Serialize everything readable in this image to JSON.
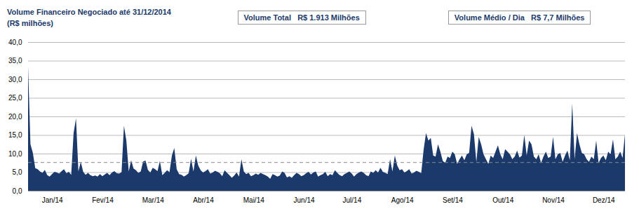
{
  "chart_data": {
    "type": "area",
    "title": "Volume Financeiro Negociado até 31/12/2014",
    "subtitle": "(R$ milhões)",
    "annotations": [
      "Volume Total   R$ 1.913 Milhões",
      "Volume Médio / Dia   R$ 7,7 Milhões"
    ],
    "color": "#1b3a6b",
    "ylim": [
      0,
      40
    ],
    "yticks": [
      {
        "value": 0,
        "label": "0,0"
      },
      {
        "value": 5,
        "label": "5,0"
      },
      {
        "value": 10,
        "label": "10,0"
      },
      {
        "value": 15,
        "label": "15,0"
      },
      {
        "value": 20,
        "label": "20,0"
      },
      {
        "value": 25,
        "label": "25,0"
      },
      {
        "value": 30,
        "label": "30,0"
      },
      {
        "value": 35,
        "label": "35,0"
      },
      {
        "value": 40,
        "label": "40,0"
      }
    ],
    "grid": true,
    "average_line": 7.7,
    "categories": [
      null,
      null,
      null,
      null,
      null,
      null,
      null,
      null,
      null,
      null,
      "Jan/14",
      null,
      null,
      null,
      null,
      null,
      null,
      null,
      null,
      null,
      null,
      null,
      null,
      null,
      null,
      null,
      null,
      null,
      null,
      null,
      null,
      "Fev/14",
      null,
      null,
      null,
      null,
      null,
      null,
      null,
      null,
      null,
      null,
      null,
      null,
      null,
      null,
      null,
      null,
      null,
      null,
      null,
      null,
      "Mar/14",
      null,
      null,
      null,
      null,
      null,
      null,
      null,
      null,
      null,
      null,
      null,
      null,
      null,
      null,
      null,
      null,
      null,
      null,
      null,
      null,
      "Abr/14",
      null,
      null,
      null,
      null,
      null,
      null,
      null,
      null,
      null,
      null,
      null,
      null,
      null,
      null,
      null,
      null,
      null,
      null,
      null,
      null,
      "Mai/14",
      null,
      null,
      null,
      null,
      null,
      null,
      null,
      null,
      null,
      null,
      null,
      null,
      null,
      null,
      null,
      null,
      null,
      null,
      null,
      null,
      "Jun/14",
      null,
      null,
      null,
      null,
      null,
      null,
      null,
      null,
      null,
      null,
      null,
      null,
      null,
      null,
      null,
      null,
      null,
      null,
      null,
      "Jul/14",
      null,
      null,
      null,
      null,
      null,
      null,
      null,
      null,
      null,
      null,
      null,
      null,
      null,
      null,
      null,
      null,
      null,
      null,
      null,
      null,
      "Ago/14",
      null,
      null,
      null,
      null,
      null,
      null,
      null,
      null,
      null,
      null,
      null,
      null,
      null,
      null,
      null,
      null,
      null,
      null,
      null,
      null,
      "Set/14",
      null,
      null,
      null,
      null,
      null,
      null,
      null,
      null,
      null,
      null,
      null,
      null,
      null,
      null,
      null,
      null,
      null,
      null,
      null,
      null,
      "Out/14",
      null,
      null,
      null,
      null,
      null,
      null,
      null,
      null,
      null,
      null,
      null,
      null,
      null,
      null,
      null,
      null,
      null,
      null,
      null,
      null,
      "Nov/14",
      null,
      null,
      null,
      null,
      null,
      null,
      null,
      null,
      null,
      null,
      null,
      null,
      null,
      null,
      null,
      null,
      null,
      null,
      null,
      null,
      "Dez/14",
      null,
      null,
      null,
      null,
      null,
      null,
      null,
      null,
      null
    ],
    "values": [
      33.5,
      12.5,
      10.2,
      6.1,
      5.8,
      5.2,
      4.8,
      5.6,
      4.2,
      3.8,
      4.5,
      5.1,
      4.9,
      4.6,
      5.3,
      5.8,
      4.7,
      5.1,
      4.3,
      15.5,
      19.5,
      5.2,
      7.8,
      5.1,
      4.3,
      4.8,
      4.2,
      3.9,
      4.1,
      3.8,
      4.5,
      3.9,
      4.4,
      4.8,
      4.2,
      4.9,
      5.3,
      4.7,
      4.6,
      5.0,
      17.5,
      13.5,
      5.2,
      8.2,
      6.0,
      5.5,
      4.8,
      5.2,
      7.9,
      8.1,
      5.6,
      4.9,
      6.2,
      5.8,
      5.3,
      8.0,
      4.2,
      4.8,
      5.5,
      5.0,
      9.5,
      11.5,
      5.8,
      4.5,
      4.3,
      3.8,
      4.2,
      4.7,
      8.6,
      5.2,
      9.5,
      6.8,
      5.5,
      4.9,
      5.3,
      5.8,
      4.6,
      4.9,
      5.4,
      5.1,
      4.7,
      3.9,
      5.5,
      4.8,
      4.2,
      3.5,
      4.1,
      4.9,
      3.8,
      8.5,
      5.2,
      4.5,
      4.8,
      3.9,
      4.2,
      4.6,
      4.3,
      4.8,
      4.5,
      4.2,
      3.8,
      3.2,
      4.5,
      4.2,
      3.8,
      4.1,
      5.2,
      4.8,
      3.6,
      3.9,
      3.5,
      4.2,
      4.8,
      4.5,
      3.9,
      4.2,
      4.7,
      5.1,
      4.4,
      4.9,
      5.2,
      3.8,
      4.2,
      4.5,
      5.1,
      3.9,
      4.5,
      4.2,
      5.5,
      4.8,
      4.2,
      3.9,
      4.5,
      4.8,
      5.2,
      4.6,
      3.8,
      4.5,
      4.9,
      5.2,
      4.8,
      4.2,
      3.9,
      5.2,
      4.8,
      5.5,
      4.9,
      6.2,
      5.1,
      4.8,
      4.5,
      8.5,
      5.2,
      9.5,
      6.8,
      5.5,
      5.8,
      4.9,
      5.3,
      5.8,
      4.6,
      4.9,
      5.4,
      5.1,
      4.7,
      11.0,
      15.5,
      13.5,
      14.2,
      9.5,
      9.2,
      12.5,
      10.5,
      8.0,
      7.5,
      9.2,
      8.8,
      10.5,
      9.8,
      7.2,
      8.5,
      9.5,
      8.2,
      9.8,
      10.2,
      17.5,
      15.2,
      7.8,
      14.5,
      12.5,
      9.8,
      8.5,
      7.2,
      9.5,
      8.8,
      10.5,
      12.2,
      9.8,
      8.5,
      11.2,
      10.5,
      9.8,
      8.5,
      9.2,
      10.8,
      8.9,
      9.5,
      15.0,
      9.5,
      13.5,
      12.5,
      9.2,
      8.5,
      9.8,
      7.5,
      9.2,
      10.5,
      8.8,
      9.2,
      14.5,
      8.5,
      9.8,
      10.2,
      7.8,
      9.5,
      10.8,
      8.2,
      23.5,
      8.5,
      15.5,
      12.5,
      10.2,
      9.8,
      8.5,
      7.8,
      9.2,
      8.5,
      13.5,
      7.5,
      8.8,
      9.5,
      8.2,
      10.5,
      9.8,
      13.8,
      8.5,
      9.2,
      10.5,
      8.8,
      15.2
    ]
  }
}
